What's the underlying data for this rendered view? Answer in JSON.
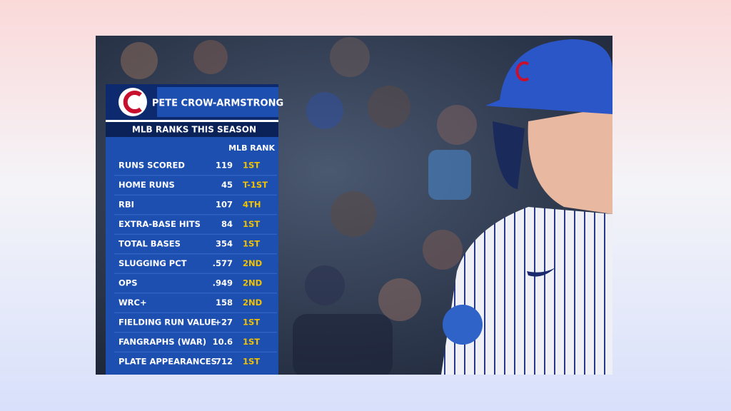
{
  "graphic": {
    "player": "PETE CROW-ARMSTRONG",
    "subtitle": "MLB RANKS THIS SEASON",
    "column_header": "MLB RANK",
    "rows": [
      [
        "RUNS SCORED",
        "119",
        "1ST"
      ],
      [
        "HOME RUNS",
        "45",
        "T-1ST"
      ],
      [
        "RBI",
        "107",
        "4TH"
      ],
      [
        "EXTRA-BASE HITS",
        "84",
        "1ST"
      ],
      [
        "TOTAL BASES",
        "354",
        "1ST"
      ],
      [
        "SLUGGING PCT",
        ".577",
        "2ND"
      ],
      [
        "OPS",
        ".949",
        "2ND"
      ],
      [
        "WRC+",
        "158",
        "2ND"
      ],
      [
        "FIELDING RUN VALUE",
        "+27",
        "1ST"
      ],
      [
        "FANGRAPHS (WAR)",
        "10.6",
        "1ST"
      ],
      [
        "PLATE APPEARANCES",
        "712",
        "1ST"
      ]
    ]
  }
}
